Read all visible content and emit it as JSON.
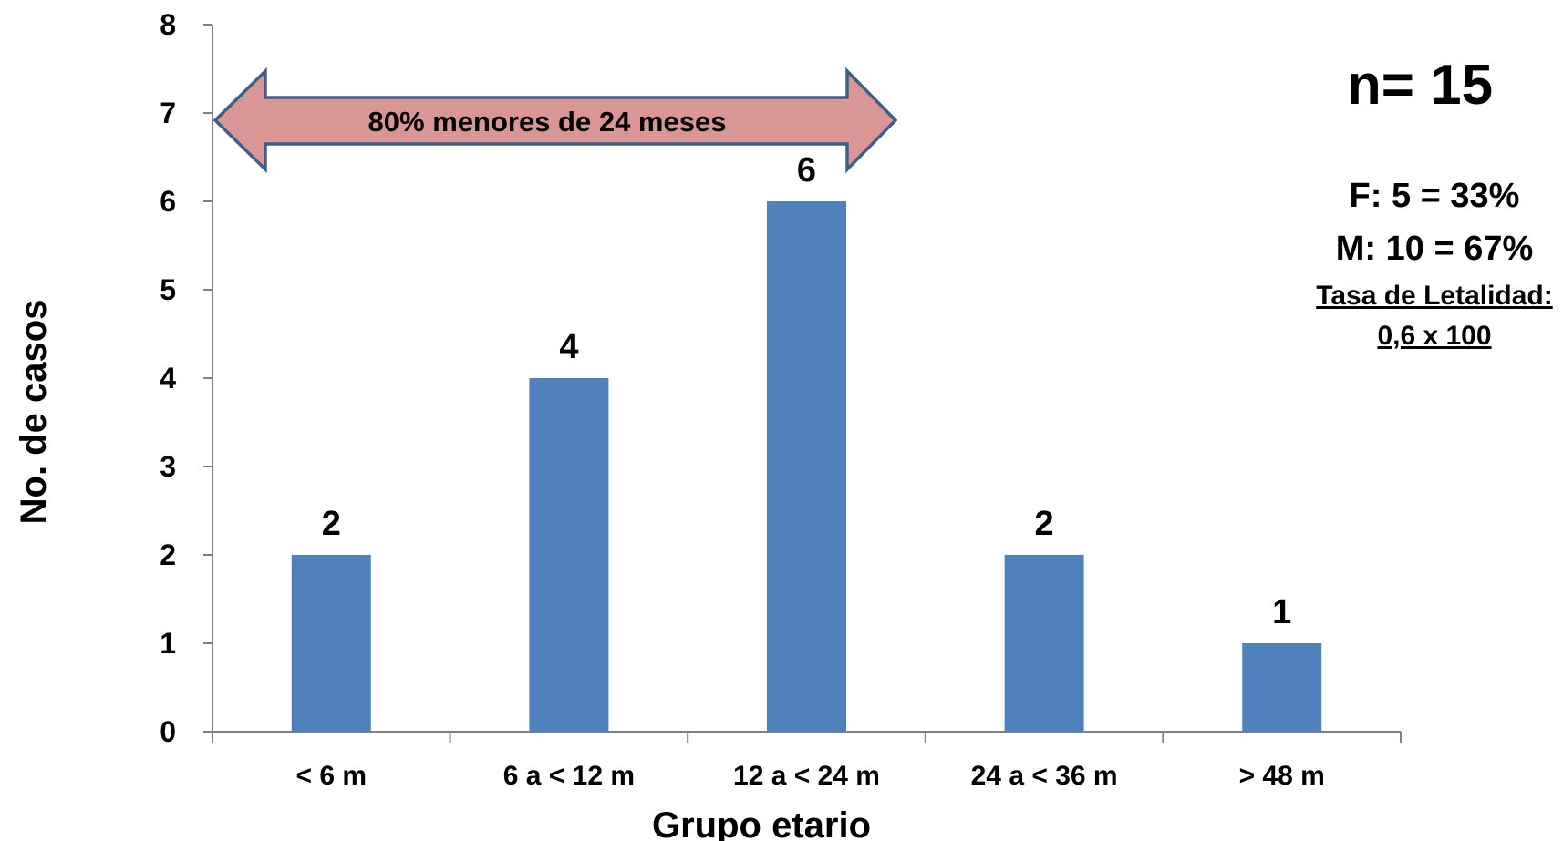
{
  "colors": {
    "bar": "#4f81bd",
    "arrow_fill": "#d99694",
    "arrow_stroke": "#3b5f8a",
    "axis": "#7f7f7f"
  },
  "chart_data": {
    "type": "bar",
    "categories": [
      "< 6 m",
      "6 a < 12 m",
      "12 a < 24 m",
      "24 a < 36 m",
      "> 48 m"
    ],
    "values": [
      2,
      4,
      6,
      2,
      1
    ],
    "data_labels": [
      "2",
      "4",
      "6",
      "2",
      "1"
    ],
    "xlabel": "Grupo etario",
    "ylabel": "No. de casos",
    "ylim": [
      0,
      8
    ],
    "yticks": [
      "0",
      "1",
      "2",
      "3",
      "4",
      "5",
      "6",
      "7",
      "8"
    ],
    "grid": false,
    "annotations": {
      "arrow_text": "80% menores de 24 meses",
      "n_text": "n= 15",
      "female_text": "F: 5 = 33%",
      "male_text": "M: 10 = 67%",
      "letalidad_label": "Tasa de Letalidad:",
      "letalidad_value": "0,6 x 100"
    }
  }
}
